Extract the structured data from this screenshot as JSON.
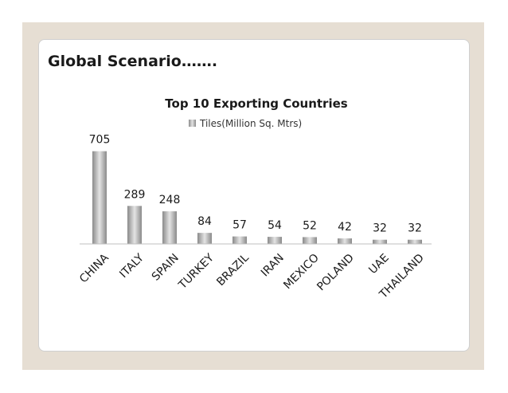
{
  "slide": {
    "title": "Global Scenario……."
  },
  "chart_data": {
    "type": "bar",
    "title": "Top 10 Exporting Countries",
    "legend_position": "top",
    "series": [
      {
        "name": "Tiles(Million Sq. Mtrs)",
        "values": [
          705,
          289,
          248,
          84,
          57,
          54,
          52,
          42,
          32,
          32
        ]
      }
    ],
    "categories": [
      "CHINA",
      "ITALY",
      "SPAIN",
      "TURKEY",
      "BRAZIL",
      "IRAN",
      "MEXICO",
      "POLAND",
      "UAE",
      "THAILAND"
    ],
    "data_labels": [
      "705",
      "289",
      "248",
      "84",
      "57",
      "54",
      "52",
      "42",
      "32",
      "32"
    ],
    "ylim": [
      0,
      800
    ],
    "grid": false,
    "colors": {
      "bar_dark": "#8a8a8a",
      "bar_light": "#e4e4e4"
    }
  }
}
